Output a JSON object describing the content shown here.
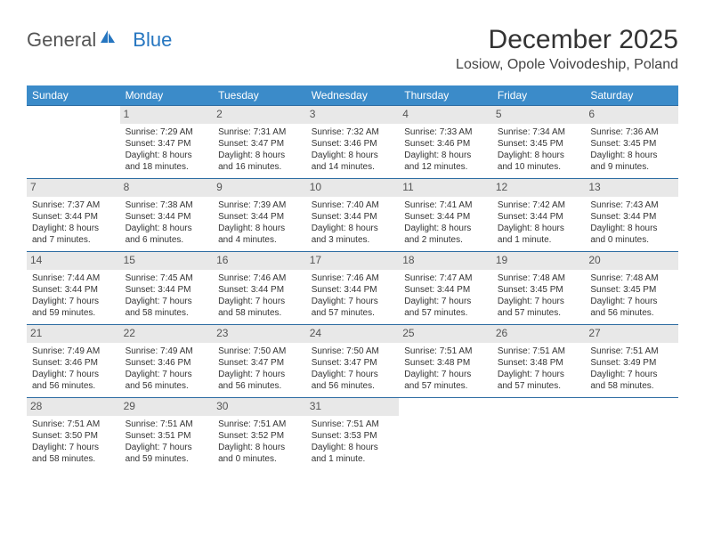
{
  "logo": {
    "text1": "General",
    "text2": "Blue"
  },
  "title": "December 2025",
  "location": "Losiow, Opole Voivodeship, Poland",
  "colors": {
    "header_bg": "#3b8bc9",
    "header_text": "#ffffff",
    "row_border": "#2d6ca2",
    "daynum_bg": "#e8e8e8",
    "logo_blue": "#2676c0"
  },
  "weekdays": [
    "Sunday",
    "Monday",
    "Tuesday",
    "Wednesday",
    "Thursday",
    "Friday",
    "Saturday"
  ],
  "weeks": [
    [
      null,
      {
        "n": "1",
        "sr": "Sunrise: 7:29 AM",
        "ss": "Sunset: 3:47 PM",
        "dl": "Daylight: 8 hours and 18 minutes."
      },
      {
        "n": "2",
        "sr": "Sunrise: 7:31 AM",
        "ss": "Sunset: 3:47 PM",
        "dl": "Daylight: 8 hours and 16 minutes."
      },
      {
        "n": "3",
        "sr": "Sunrise: 7:32 AM",
        "ss": "Sunset: 3:46 PM",
        "dl": "Daylight: 8 hours and 14 minutes."
      },
      {
        "n": "4",
        "sr": "Sunrise: 7:33 AM",
        "ss": "Sunset: 3:46 PM",
        "dl": "Daylight: 8 hours and 12 minutes."
      },
      {
        "n": "5",
        "sr": "Sunrise: 7:34 AM",
        "ss": "Sunset: 3:45 PM",
        "dl": "Daylight: 8 hours and 10 minutes."
      },
      {
        "n": "6",
        "sr": "Sunrise: 7:36 AM",
        "ss": "Sunset: 3:45 PM",
        "dl": "Daylight: 8 hours and 9 minutes."
      }
    ],
    [
      {
        "n": "7",
        "sr": "Sunrise: 7:37 AM",
        "ss": "Sunset: 3:44 PM",
        "dl": "Daylight: 8 hours and 7 minutes."
      },
      {
        "n": "8",
        "sr": "Sunrise: 7:38 AM",
        "ss": "Sunset: 3:44 PM",
        "dl": "Daylight: 8 hours and 6 minutes."
      },
      {
        "n": "9",
        "sr": "Sunrise: 7:39 AM",
        "ss": "Sunset: 3:44 PM",
        "dl": "Daylight: 8 hours and 4 minutes."
      },
      {
        "n": "10",
        "sr": "Sunrise: 7:40 AM",
        "ss": "Sunset: 3:44 PM",
        "dl": "Daylight: 8 hours and 3 minutes."
      },
      {
        "n": "11",
        "sr": "Sunrise: 7:41 AM",
        "ss": "Sunset: 3:44 PM",
        "dl": "Daylight: 8 hours and 2 minutes."
      },
      {
        "n": "12",
        "sr": "Sunrise: 7:42 AM",
        "ss": "Sunset: 3:44 PM",
        "dl": "Daylight: 8 hours and 1 minute."
      },
      {
        "n": "13",
        "sr": "Sunrise: 7:43 AM",
        "ss": "Sunset: 3:44 PM",
        "dl": "Daylight: 8 hours and 0 minutes."
      }
    ],
    [
      {
        "n": "14",
        "sr": "Sunrise: 7:44 AM",
        "ss": "Sunset: 3:44 PM",
        "dl": "Daylight: 7 hours and 59 minutes."
      },
      {
        "n": "15",
        "sr": "Sunrise: 7:45 AM",
        "ss": "Sunset: 3:44 PM",
        "dl": "Daylight: 7 hours and 58 minutes."
      },
      {
        "n": "16",
        "sr": "Sunrise: 7:46 AM",
        "ss": "Sunset: 3:44 PM",
        "dl": "Daylight: 7 hours and 58 minutes."
      },
      {
        "n": "17",
        "sr": "Sunrise: 7:46 AM",
        "ss": "Sunset: 3:44 PM",
        "dl": "Daylight: 7 hours and 57 minutes."
      },
      {
        "n": "18",
        "sr": "Sunrise: 7:47 AM",
        "ss": "Sunset: 3:44 PM",
        "dl": "Daylight: 7 hours and 57 minutes."
      },
      {
        "n": "19",
        "sr": "Sunrise: 7:48 AM",
        "ss": "Sunset: 3:45 PM",
        "dl": "Daylight: 7 hours and 57 minutes."
      },
      {
        "n": "20",
        "sr": "Sunrise: 7:48 AM",
        "ss": "Sunset: 3:45 PM",
        "dl": "Daylight: 7 hours and 56 minutes."
      }
    ],
    [
      {
        "n": "21",
        "sr": "Sunrise: 7:49 AM",
        "ss": "Sunset: 3:46 PM",
        "dl": "Daylight: 7 hours and 56 minutes."
      },
      {
        "n": "22",
        "sr": "Sunrise: 7:49 AM",
        "ss": "Sunset: 3:46 PM",
        "dl": "Daylight: 7 hours and 56 minutes."
      },
      {
        "n": "23",
        "sr": "Sunrise: 7:50 AM",
        "ss": "Sunset: 3:47 PM",
        "dl": "Daylight: 7 hours and 56 minutes."
      },
      {
        "n": "24",
        "sr": "Sunrise: 7:50 AM",
        "ss": "Sunset: 3:47 PM",
        "dl": "Daylight: 7 hours and 56 minutes."
      },
      {
        "n": "25",
        "sr": "Sunrise: 7:51 AM",
        "ss": "Sunset: 3:48 PM",
        "dl": "Daylight: 7 hours and 57 minutes."
      },
      {
        "n": "26",
        "sr": "Sunrise: 7:51 AM",
        "ss": "Sunset: 3:48 PM",
        "dl": "Daylight: 7 hours and 57 minutes."
      },
      {
        "n": "27",
        "sr": "Sunrise: 7:51 AM",
        "ss": "Sunset: 3:49 PM",
        "dl": "Daylight: 7 hours and 58 minutes."
      }
    ],
    [
      {
        "n": "28",
        "sr": "Sunrise: 7:51 AM",
        "ss": "Sunset: 3:50 PM",
        "dl": "Daylight: 7 hours and 58 minutes."
      },
      {
        "n": "29",
        "sr": "Sunrise: 7:51 AM",
        "ss": "Sunset: 3:51 PM",
        "dl": "Daylight: 7 hours and 59 minutes."
      },
      {
        "n": "30",
        "sr": "Sunrise: 7:51 AM",
        "ss": "Sunset: 3:52 PM",
        "dl": "Daylight: 8 hours and 0 minutes."
      },
      {
        "n": "31",
        "sr": "Sunrise: 7:51 AM",
        "ss": "Sunset: 3:53 PM",
        "dl": "Daylight: 8 hours and 1 minute."
      },
      null,
      null,
      null
    ]
  ]
}
